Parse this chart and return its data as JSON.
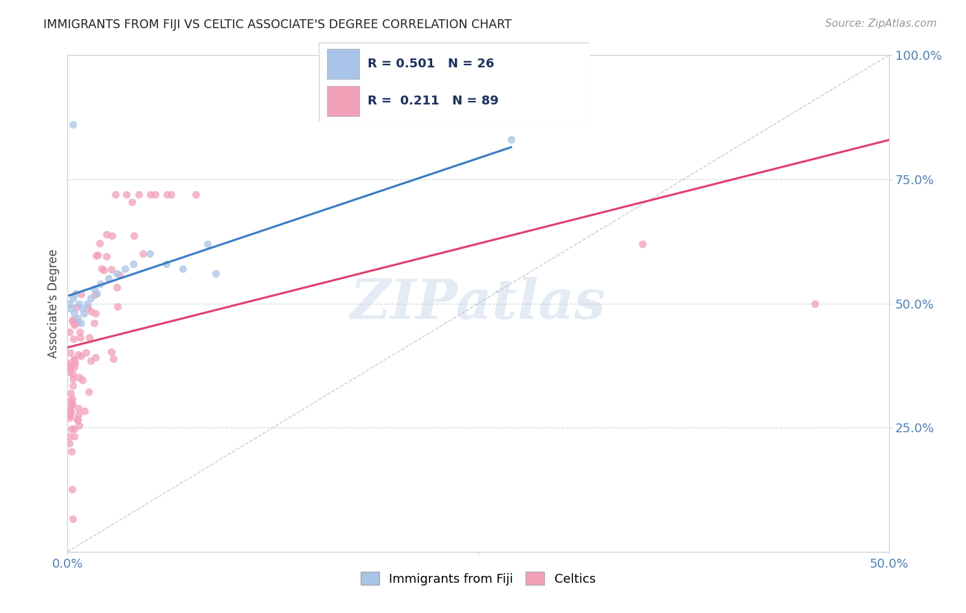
{
  "title": "IMMIGRANTS FROM FIJI VS CELTIC ASSOCIATE'S DEGREE CORRELATION CHART",
  "source_text": "Source: ZipAtlas.com",
  "ylabel": "Associate's Degree",
  "xlim": [
    0.0,
    0.5
  ],
  "ylim": [
    0.0,
    1.0
  ],
  "color_fiji": "#a8c4e8",
  "color_celtic": "#f4a0b8",
  "line_color_fiji": "#3a7cc4",
  "line_color_celtic": "#e04070",
  "watermark": "ZIPatlas",
  "background_color": "#ffffff",
  "grid_color": "#cccccc",
  "ref_line_color": "#b0b8cc",
  "tick_color": "#4a7fc1",
  "title_color": "#222222",
  "source_color": "#999999"
}
